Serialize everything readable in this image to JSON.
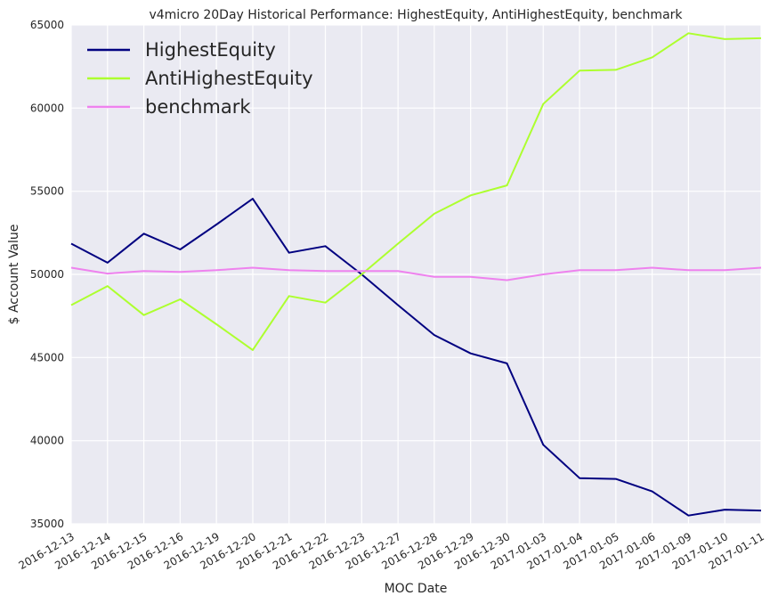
{
  "chart_data": {
    "type": "line",
    "title": "v4micro 20Day Historical Performance: HighestEquity, AntiHighestEquity, benchmark",
    "xlabel": "MOC Date",
    "ylabel": "$ Account Value",
    "ylim": [
      35000,
      65000
    ],
    "yticks": [
      35000,
      40000,
      45000,
      50000,
      55000,
      60000,
      65000
    ],
    "grid": true,
    "legend_position": "top-left",
    "categories": [
      "2016-12-13",
      "2016-12-14",
      "2016-12-15",
      "2016-12-16",
      "2016-12-19",
      "2016-12-20",
      "2016-12-21",
      "2016-12-22",
      "2016-12-23",
      "2016-12-27",
      "2016-12-28",
      "2016-12-29",
      "2016-12-30",
      "2017-01-03",
      "2017-01-04",
      "2017-01-05",
      "2017-01-06",
      "2017-01-09",
      "2017-01-10",
      "2017-01-11"
    ],
    "series": [
      {
        "name": "HighestEquity",
        "color": "#000080",
        "values": [
          51850,
          50700,
          52450,
          51500,
          53000,
          54550,
          51300,
          51700,
          50000,
          48150,
          46350,
          45250,
          44650,
          39750,
          37750,
          37700,
          36950,
          35500,
          35850,
          35800
        ]
      },
      {
        "name": "AntiHighestEquity",
        "color": "#adff2f",
        "values": [
          48150,
          49300,
          47550,
          48500,
          47000,
          45450,
          48700,
          48300,
          50000,
          51850,
          53650,
          54750,
          55350,
          60250,
          62250,
          62300,
          63050,
          64500,
          64150,
          64200
        ]
      },
      {
        "name": "benchmark",
        "color": "#ee82ee",
        "values": [
          50400,
          50050,
          50200,
          50150,
          50250,
          50400,
          50250,
          50200,
          50200,
          50200,
          49850,
          49850,
          49650,
          50000,
          50250,
          50250,
          50400,
          50250,
          50250,
          50400
        ]
      }
    ]
  }
}
